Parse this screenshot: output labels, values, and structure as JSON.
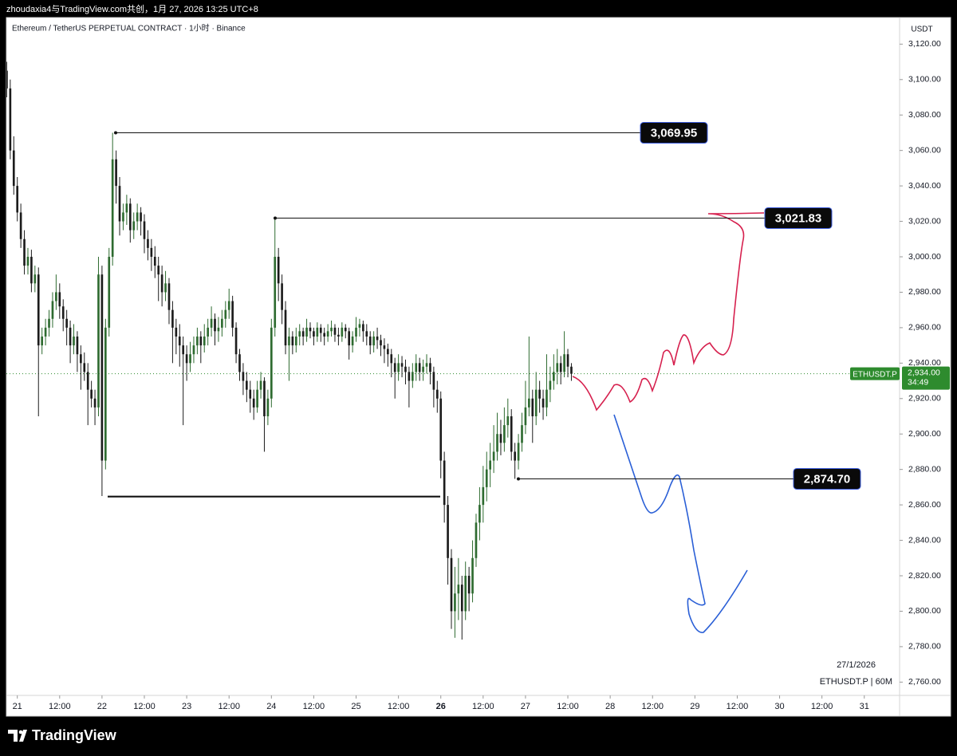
{
  "chart_data": {
    "type": "candlestick",
    "header": "zhoudaxia4与TradingView.com共创，1月 27, 2026 13:25 UTC+8",
    "title": "Ethereum / TetherUS PERPETUAL CONTRACT · 1小时 · Binance",
    "currency": "USDT",
    "footer_date": "27/1/2026",
    "footer_symbol": "ETHUSDT.P | 60M",
    "brand": "TradingView",
    "up_color": "#2e6b30",
    "down_color": "#1c1c1c",
    "xlim": [
      -4,
      250
    ],
    "ylim": [
      2752.5,
      3135
    ],
    "xticks": [
      {
        "value": 0,
        "label": "21"
      },
      {
        "value": 12,
        "label": "12:00"
      },
      {
        "value": 24,
        "label": "22"
      },
      {
        "value": 36,
        "label": "12:00"
      },
      {
        "value": 48,
        "label": "23"
      },
      {
        "value": 60,
        "label": "12:00"
      },
      {
        "value": 72,
        "label": "24"
      },
      {
        "value": 84,
        "label": "12:00"
      },
      {
        "value": 96,
        "label": "25"
      },
      {
        "value": 108,
        "label": "12:00"
      },
      {
        "value": 120,
        "label": "26"
      },
      {
        "value": 132,
        "label": "12:00"
      },
      {
        "value": 144,
        "label": "27"
      },
      {
        "value": 156,
        "label": "12:00"
      },
      {
        "value": 168,
        "label": "28"
      },
      {
        "value": 180,
        "label": "12:00"
      },
      {
        "value": 192,
        "label": "29"
      },
      {
        "value": 204,
        "label": "12:00"
      },
      {
        "value": 216,
        "label": "30"
      },
      {
        "value": 228,
        "label": "12:00"
      },
      {
        "value": 240,
        "label": "31"
      }
    ],
    "yticks": [
      {
        "value": 3120,
        "label": "3,120.00"
      },
      {
        "value": 3100,
        "label": "3,100.00"
      },
      {
        "value": 3080,
        "label": "3,080.00"
      },
      {
        "value": 3060,
        "label": "3,060.00"
      },
      {
        "value": 3040,
        "label": "3,040.00"
      },
      {
        "value": 3020,
        "label": "3,020.00"
      },
      {
        "value": 3000,
        "label": "3,000.00"
      },
      {
        "value": 2980,
        "label": "2,980.00"
      },
      {
        "value": 2960,
        "label": "2,960.00"
      },
      {
        "value": 2940,
        "label": "2,940.00"
      },
      {
        "value": 2920,
        "label": "2,920.00"
      },
      {
        "value": 2900,
        "label": "2,900.00"
      },
      {
        "value": 2880,
        "label": "2,880.00"
      },
      {
        "value": 2860,
        "label": "2,860.00"
      },
      {
        "value": 2840,
        "label": "2,840.00"
      },
      {
        "value": 2820,
        "label": "2,820.00"
      },
      {
        "value": 2800,
        "label": "2,800.00"
      },
      {
        "value": 2780,
        "label": "2,780.00"
      },
      {
        "value": 2760,
        "label": "2,760.00"
      }
    ],
    "levels": [
      {
        "value": 3069.95,
        "label": "3,069.95"
      },
      {
        "value": 3021.83,
        "label": "3,021.83"
      },
      {
        "value": 2874.7,
        "label": "2,874.70"
      },
      {
        "value": 2864.7
      }
    ],
    "last_price": {
      "value": 2934,
      "label": "2,934.00",
      "symbol": "ETHUSDT.P",
      "countdown": "34:49",
      "color": "#2e8b2e"
    },
    "x": [
      -3,
      -2,
      -1,
      0,
      1,
      2,
      3,
      4,
      5,
      6,
      7,
      8,
      9,
      10,
      11,
      12,
      13,
      14,
      15,
      16,
      17,
      18,
      19,
      20,
      21,
      22,
      23,
      24,
      25,
      26,
      27,
      28,
      29,
      30,
      31,
      32,
      33,
      34,
      35,
      36,
      37,
      38,
      39,
      40,
      41,
      42,
      43,
      44,
      45,
      46,
      47,
      48,
      49,
      50,
      51,
      52,
      53,
      54,
      55,
      56,
      57,
      58,
      59,
      60,
      61,
      62,
      63,
      64,
      65,
      66,
      67,
      68,
      69,
      70,
      71,
      72,
      73,
      74,
      75,
      76,
      77,
      78,
      79,
      80,
      81,
      82,
      83,
      84,
      85,
      86,
      87,
      88,
      89,
      90,
      91,
      92,
      93,
      94,
      95,
      96,
      97,
      98,
      99,
      100,
      101,
      102,
      103,
      104,
      105,
      106,
      107,
      108,
      109,
      110,
      111,
      112,
      113,
      114,
      115,
      116,
      117,
      118,
      119,
      120,
      121,
      122,
      123,
      124,
      125,
      126,
      127,
      128,
      129,
      130,
      131,
      132,
      133,
      134,
      135,
      136,
      137,
      138,
      139,
      140,
      141,
      142,
      143,
      144,
      145,
      146,
      147,
      148,
      149,
      150,
      151,
      152,
      153,
      154,
      155,
      156,
      157
    ],
    "candles": [
      [
        3105,
        3110,
        3090,
        3095
      ],
      [
        3095,
        3100,
        3055,
        3060
      ],
      [
        3060,
        3068,
        3035,
        3040
      ],
      [
        3040,
        3045,
        3020,
        3025
      ],
      [
        3025,
        3030,
        3005,
        3010
      ],
      [
        3010,
        3015,
        2990,
        2995
      ],
      [
        2995,
        3005,
        2990,
        3000
      ],
      [
        3000,
        3004,
        2980,
        2985
      ],
      [
        2985,
        2995,
        2980,
        2990
      ],
      [
        2990,
        2994,
        2910,
        2950
      ],
      [
        2950,
        2960,
        2945,
        2955
      ],
      [
        2955,
        2965,
        2950,
        2960
      ],
      [
        2960,
        2970,
        2955,
        2965
      ],
      [
        2965,
        2980,
        2960,
        2975
      ],
      [
        2975,
        2990,
        2970,
        2980
      ],
      [
        2980,
        2985,
        2965,
        2972
      ],
      [
        2972,
        2976,
        2958,
        2965
      ],
      [
        2965,
        2970,
        2950,
        2960
      ],
      [
        2960,
        2964,
        2940,
        2950
      ],
      [
        2950,
        2962,
        2945,
        2955
      ],
      [
        2955,
        2958,
        2935,
        2945
      ],
      [
        2945,
        2950,
        2925,
        2940
      ],
      [
        2940,
        2946,
        2930,
        2935
      ],
      [
        2935,
        2940,
        2905,
        2925
      ],
      [
        2925,
        2930,
        2915,
        2920
      ],
      [
        2920,
        2925,
        2905,
        2915
      ],
      [
        2915,
        3000,
        2910,
        2990
      ],
      [
        2990,
        2995,
        2865,
        2885
      ],
      [
        2885,
        2965,
        2880,
        2960
      ],
      [
        2960,
        3005,
        2955,
        3000
      ],
      [
        3000,
        3070,
        2995,
        3055
      ],
      [
        3055,
        3060,
        3030,
        3040
      ],
      [
        3040,
        3045,
        3012,
        3020
      ],
      [
        3020,
        3030,
        3015,
        3025
      ],
      [
        3025,
        3035,
        3018,
        3030
      ],
      [
        3030,
        3033,
        3008,
        3015
      ],
      [
        3015,
        3025,
        3010,
        3020
      ],
      [
        3020,
        3030,
        3015,
        3025
      ],
      [
        3025,
        3028,
        3012,
        3020
      ],
      [
        3020,
        3024,
        3002,
        3010
      ],
      [
        3010,
        3015,
        2998,
        3005
      ],
      [
        3005,
        3010,
        2992,
        3000
      ],
      [
        3000,
        3006,
        2988,
        2995
      ],
      [
        2995,
        3000,
        2975,
        2990
      ],
      [
        2990,
        2995,
        2972,
        2980
      ],
      [
        2980,
        2992,
        2975,
        2985
      ],
      [
        2985,
        2988,
        2962,
        2970
      ],
      [
        2970,
        2975,
        2940,
        2960
      ],
      [
        2960,
        2965,
        2945,
        2955
      ],
      [
        2955,
        2962,
        2938,
        2950
      ],
      [
        2950,
        2955,
        2905,
        2945
      ],
      [
        2945,
        2950,
        2930,
        2940
      ],
      [
        2940,
        2952,
        2935,
        2945
      ],
      [
        2945,
        2955,
        2940,
        2950
      ],
      [
        2950,
        2960,
        2945,
        2955
      ],
      [
        2955,
        2958,
        2940,
        2950
      ],
      [
        2950,
        2962,
        2946,
        2955
      ],
      [
        2955,
        2965,
        2950,
        2960
      ],
      [
        2960,
        2972,
        2955,
        2965
      ],
      [
        2965,
        2968,
        2950,
        2958
      ],
      [
        2958,
        2966,
        2952,
        2960
      ],
      [
        2960,
        2970,
        2955,
        2965
      ],
      [
        2965,
        2975,
        2960,
        2970
      ],
      [
        2970,
        2982,
        2965,
        2975
      ],
      [
        2975,
        2978,
        2955,
        2960
      ],
      [
        2960,
        2963,
        2940,
        2945
      ],
      [
        2945,
        2948,
        2930,
        2935
      ],
      [
        2935,
        2940,
        2922,
        2930
      ],
      [
        2930,
        2935,
        2918,
        2925
      ],
      [
        2925,
        2930,
        2912,
        2920
      ],
      [
        2920,
        2925,
        2908,
        2915
      ],
      [
        2915,
        2930,
        2912,
        2925
      ],
      [
        2925,
        2935,
        2920,
        2930
      ],
      [
        2930,
        2932,
        2890,
        2910
      ],
      [
        2910,
        2925,
        2905,
        2920
      ],
      [
        2920,
        2965,
        2915,
        2960
      ],
      [
        2960,
        3021.83,
        2955,
        3000
      ],
      [
        3000,
        3005,
        2975,
        2985
      ],
      [
        2985,
        2990,
        2962,
        2970
      ],
      [
        2970,
        2975,
        2945,
        2950
      ],
      [
        2950,
        2960,
        2930,
        2955
      ],
      [
        2955,
        2958,
        2945,
        2950
      ],
      [
        2950,
        2960,
        2946,
        2955
      ],
      [
        2955,
        2962,
        2950,
        2958
      ],
      [
        2958,
        2960,
        2950,
        2955
      ],
      [
        2955,
        2965,
        2952,
        2960
      ],
      [
        2960,
        2963,
        2954,
        2958
      ],
      [
        2958,
        2960,
        2950,
        2955
      ],
      [
        2955,
        2963,
        2952,
        2960
      ],
      [
        2960,
        2962,
        2952,
        2957
      ],
      [
        2957,
        2960,
        2950,
        2955
      ],
      [
        2955,
        2962,
        2952,
        2958
      ],
      [
        2958,
        2964,
        2955,
        2960
      ],
      [
        2960,
        2962,
        2952,
        2956
      ],
      [
        2956,
        2960,
        2950,
        2955
      ],
      [
        2955,
        2963,
        2952,
        2960
      ],
      [
        2960,
        2962,
        2954,
        2958
      ],
      [
        2958,
        2960,
        2942,
        2950
      ],
      [
        2950,
        2958,
        2946,
        2955
      ],
      [
        2955,
        2966,
        2952,
        2960
      ],
      [
        2960,
        2965,
        2955,
        2962
      ],
      [
        2962,
        2964,
        2952,
        2958
      ],
      [
        2958,
        2962,
        2950,
        2955
      ],
      [
        2955,
        2958,
        2945,
        2950
      ],
      [
        2950,
        2958,
        2946,
        2955
      ],
      [
        2955,
        2960,
        2948,
        2953
      ],
      [
        2953,
        2956,
        2944,
        2950
      ],
      [
        2950,
        2954,
        2940,
        2948
      ],
      [
        2948,
        2951,
        2938,
        2945
      ],
      [
        2945,
        2948,
        2932,
        2940
      ],
      [
        2940,
        2943,
        2920,
        2935
      ],
      [
        2935,
        2945,
        2930,
        2940
      ],
      [
        2940,
        2944,
        2932,
        2938
      ],
      [
        2938,
        2942,
        2928,
        2935
      ],
      [
        2935,
        2938,
        2915,
        2930
      ],
      [
        2930,
        2940,
        2926,
        2935
      ],
      [
        2935,
        2945,
        2930,
        2940
      ],
      [
        2940,
        2943,
        2930,
        2935
      ],
      [
        2935,
        2942,
        2930,
        2938
      ],
      [
        2938,
        2945,
        2934,
        2940
      ],
      [
        2940,
        2943,
        2928,
        2935
      ],
      [
        2935,
        2938,
        2915,
        2925
      ],
      [
        2925,
        2930,
        2912,
        2920
      ],
      [
        2920,
        2924,
        2875,
        2885
      ],
      [
        2885,
        2890,
        2850,
        2860
      ],
      [
        2860,
        2865,
        2815,
        2830
      ],
      [
        2830,
        2835,
        2790,
        2800
      ],
      [
        2800,
        2825,
        2785,
        2810
      ],
      [
        2810,
        2830,
        2795,
        2815
      ],
      [
        2815,
        2820,
        2784,
        2800
      ],
      [
        2800,
        2828,
        2795,
        2820
      ],
      [
        2820,
        2825,
        2800,
        2810
      ],
      [
        2810,
        2840,
        2805,
        2830
      ],
      [
        2830,
        2855,
        2825,
        2850
      ],
      [
        2850,
        2870,
        2840,
        2860
      ],
      [
        2860,
        2882,
        2850,
        2870
      ],
      [
        2870,
        2890,
        2862,
        2880
      ],
      [
        2880,
        2895,
        2870,
        2885
      ],
      [
        2885,
        2905,
        2878,
        2890
      ],
      [
        2890,
        2912,
        2885,
        2900
      ],
      [
        2900,
        2908,
        2888,
        2895
      ],
      [
        2895,
        2915,
        2890,
        2905
      ],
      [
        2905,
        2920,
        2898,
        2910
      ],
      [
        2910,
        2914,
        2885,
        2890
      ],
      [
        2890,
        2895,
        2874.7,
        2885
      ],
      [
        2885,
        2900,
        2880,
        2895
      ],
      [
        2895,
        2912,
        2890,
        2905
      ],
      [
        2905,
        2930,
        2900,
        2915
      ],
      [
        2915,
        2955,
        2910,
        2920
      ],
      [
        2920,
        2925,
        2895,
        2910
      ],
      [
        2910,
        2935,
        2905,
        2925
      ],
      [
        2925,
        2930,
        2912,
        2920
      ],
      [
        2920,
        2925,
        2908,
        2915
      ],
      [
        2915,
        2945,
        2910,
        2925
      ],
      [
        2925,
        2938,
        2918,
        2930
      ],
      [
        2930,
        2945,
        2925,
        2935
      ],
      [
        2935,
        2948,
        2928,
        2940
      ],
      [
        2940,
        2944,
        2928,
        2935
      ],
      [
        2935,
        2958,
        2932,
        2945
      ],
      [
        2945,
        2948,
        2932,
        2938
      ],
      [
        2938,
        2940,
        2930,
        2934
      ]
    ]
  }
}
